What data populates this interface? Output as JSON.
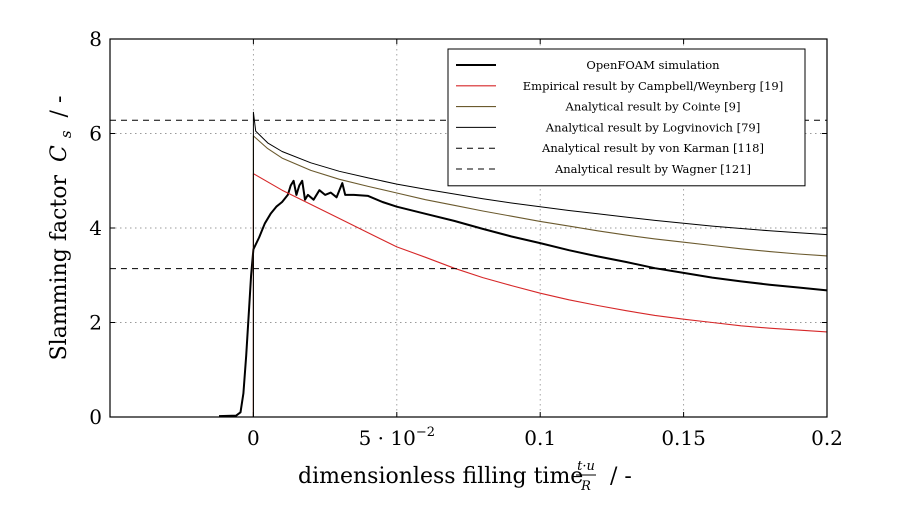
{
  "chart_data": {
    "type": "line",
    "xlabel": "dimensionless filling time",
    "xlabel_fraction": {
      "numerator": "t·u",
      "denominator": "R"
    },
    "xlabel_unit": "/ -",
    "ylabel": "Slamming factor",
    "ylabel_symbol": "C",
    "ylabel_subscript": "s",
    "ylabel_unit": "/ -",
    "xlim": [
      -0.05,
      0.2
    ],
    "ylim": [
      0,
      8
    ],
    "x_ticks": [
      {
        "value": 0,
        "label": "0"
      },
      {
        "value": 0.05,
        "label": "5 · 10",
        "exponent": "−2"
      },
      {
        "value": 0.1,
        "label": "0.1"
      },
      {
        "value": 0.15,
        "label": "0.15"
      },
      {
        "value": 0.2,
        "label": "0.2"
      }
    ],
    "y_ticks": [
      {
        "value": 0,
        "label": "0"
      },
      {
        "value": 2,
        "label": "2"
      },
      {
        "value": 4,
        "label": "4"
      },
      {
        "value": 6,
        "label": "6"
      },
      {
        "value": 8,
        "label": "8"
      }
    ],
    "grid": "dotted",
    "legend_position": "top-right",
    "series": [
      {
        "name": "OpenFOAM simulation",
        "color": "#000000",
        "style": "solid-thick",
        "points": [
          [
            -0.012,
            0.02
          ],
          [
            -0.006,
            0.03
          ],
          [
            -0.0045,
            0.1
          ],
          [
            -0.0035,
            0.5
          ],
          [
            -0.0025,
            1.3
          ],
          [
            -0.0015,
            2.3
          ],
          [
            -0.0008,
            3.0
          ],
          [
            0.0,
            3.55
          ],
          [
            0.002,
            3.8
          ],
          [
            0.004,
            4.1
          ],
          [
            0.006,
            4.3
          ],
          [
            0.008,
            4.45
          ],
          [
            0.01,
            4.55
          ],
          [
            0.012,
            4.7
          ],
          [
            0.013,
            4.9
          ],
          [
            0.014,
            5.0
          ],
          [
            0.015,
            4.7
          ],
          [
            0.016,
            4.9
          ],
          [
            0.017,
            5.0
          ],
          [
            0.018,
            4.6
          ],
          [
            0.019,
            4.7
          ],
          [
            0.021,
            4.6
          ],
          [
            0.023,
            4.8
          ],
          [
            0.025,
            4.7
          ],
          [
            0.027,
            4.75
          ],
          [
            0.029,
            4.65
          ],
          [
            0.03,
            4.8
          ],
          [
            0.031,
            4.95
          ],
          [
            0.032,
            4.7
          ],
          [
            0.035,
            4.7
          ],
          [
            0.04,
            4.68
          ],
          [
            0.045,
            4.55
          ],
          [
            0.05,
            4.45
          ],
          [
            0.06,
            4.3
          ],
          [
            0.07,
            4.15
          ],
          [
            0.08,
            3.98
          ],
          [
            0.09,
            3.82
          ],
          [
            0.1,
            3.68
          ],
          [
            0.11,
            3.53
          ],
          [
            0.12,
            3.4
          ],
          [
            0.13,
            3.28
          ],
          [
            0.14,
            3.15
          ],
          [
            0.15,
            3.05
          ],
          [
            0.16,
            2.95
          ],
          [
            0.17,
            2.87
          ],
          [
            0.18,
            2.8
          ],
          [
            0.19,
            2.74
          ],
          [
            0.2,
            2.68
          ]
        ]
      },
      {
        "name": "Empirical result by Campbell/Weynberg [19]",
        "color": "#d62728",
        "style": "solid",
        "points": [
          [
            0.0,
            0.0
          ],
          [
            0.0,
            5.15
          ],
          [
            0.01,
            4.8
          ],
          [
            0.02,
            4.5
          ],
          [
            0.03,
            4.2
          ],
          [
            0.04,
            3.9
          ],
          [
            0.05,
            3.6
          ],
          [
            0.06,
            3.38
          ],
          [
            0.07,
            3.15
          ],
          [
            0.08,
            2.95
          ],
          [
            0.09,
            2.78
          ],
          [
            0.1,
            2.62
          ],
          [
            0.11,
            2.48
          ],
          [
            0.12,
            2.36
          ],
          [
            0.13,
            2.25
          ],
          [
            0.14,
            2.15
          ],
          [
            0.15,
            2.07
          ],
          [
            0.16,
            2.0
          ],
          [
            0.17,
            1.93
          ],
          [
            0.18,
            1.88
          ],
          [
            0.19,
            1.84
          ],
          [
            0.2,
            1.8
          ]
        ]
      },
      {
        "name": "Analytical result by Cointe [9]",
        "color": "#6b5a2e",
        "style": "solid",
        "points": [
          [
            0.0,
            0.0
          ],
          [
            0.0,
            5.95
          ],
          [
            0.005,
            5.68
          ],
          [
            0.01,
            5.48
          ],
          [
            0.02,
            5.22
          ],
          [
            0.03,
            5.03
          ],
          [
            0.04,
            4.88
          ],
          [
            0.05,
            4.74
          ],
          [
            0.06,
            4.6
          ],
          [
            0.07,
            4.48
          ],
          [
            0.08,
            4.36
          ],
          [
            0.09,
            4.25
          ],
          [
            0.1,
            4.14
          ],
          [
            0.11,
            4.04
          ],
          [
            0.12,
            3.94
          ],
          [
            0.13,
            3.85
          ],
          [
            0.14,
            3.77
          ],
          [
            0.15,
            3.7
          ],
          [
            0.16,
            3.63
          ],
          [
            0.17,
            3.56
          ],
          [
            0.18,
            3.5
          ],
          [
            0.19,
            3.45
          ],
          [
            0.2,
            3.41
          ]
        ]
      },
      {
        "name": "Analytical result by Logvinovich [79]",
        "color": "#000000",
        "style": "solid-thin",
        "points": [
          [
            0.0,
            0.0
          ],
          [
            0.0,
            6.45
          ],
          [
            0.0008,
            6.05
          ],
          [
            0.005,
            5.8
          ],
          [
            0.01,
            5.62
          ],
          [
            0.02,
            5.38
          ],
          [
            0.03,
            5.2
          ],
          [
            0.04,
            5.06
          ],
          [
            0.05,
            4.93
          ],
          [
            0.06,
            4.82
          ],
          [
            0.07,
            4.72
          ],
          [
            0.08,
            4.62
          ],
          [
            0.09,
            4.53
          ],
          [
            0.1,
            4.45
          ],
          [
            0.11,
            4.37
          ],
          [
            0.12,
            4.3
          ],
          [
            0.13,
            4.23
          ],
          [
            0.14,
            4.16
          ],
          [
            0.15,
            4.1
          ],
          [
            0.16,
            4.04
          ],
          [
            0.17,
            3.99
          ],
          [
            0.18,
            3.94
          ],
          [
            0.19,
            3.9
          ],
          [
            0.2,
            3.86
          ]
        ]
      },
      {
        "name": "Analytical result by von Karman [118]",
        "color": "#000000",
        "style": "dashed",
        "points": [
          [
            -0.05,
            3.14
          ],
          [
            0.2,
            3.14
          ]
        ]
      },
      {
        "name": "Analytical result by Wagner [121]",
        "color": "#000000",
        "style": "dashed",
        "points": [
          [
            -0.05,
            6.28
          ],
          [
            0.2,
            6.28
          ]
        ]
      }
    ]
  }
}
